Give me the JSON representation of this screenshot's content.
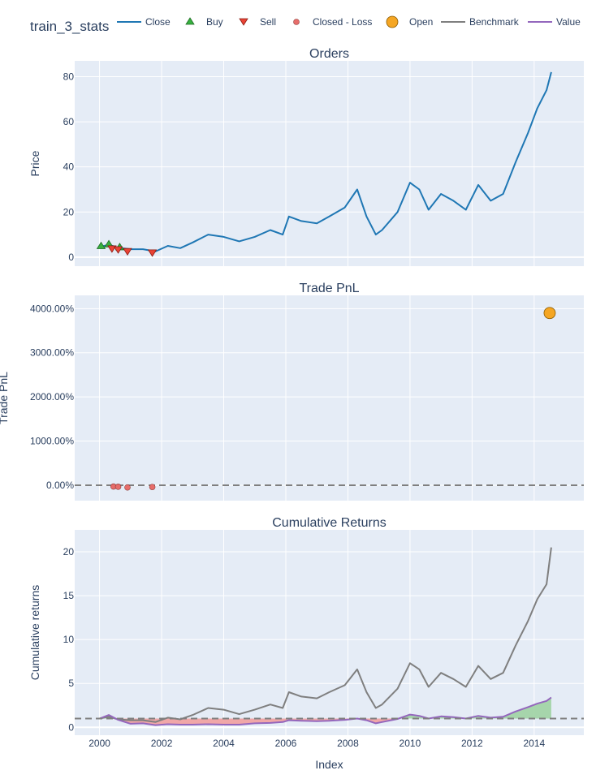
{
  "title": "train_3_stats",
  "legend": [
    {
      "label": "Close",
      "symbol": "line",
      "color": "#1f77b4"
    },
    {
      "label": "Buy",
      "symbol": "triangle-up",
      "color": "#37b13f"
    },
    {
      "label": "Sell",
      "symbol": "triangle-down",
      "color": "#ea4335"
    },
    {
      "label": "Closed - Loss",
      "symbol": "circle-small",
      "color": "#e76d6a"
    },
    {
      "label": "Open",
      "symbol": "circle-large",
      "color": "#f5a623"
    },
    {
      "label": "Benchmark",
      "symbol": "line",
      "color": "#7f7f7f"
    },
    {
      "label": "Value",
      "symbol": "line",
      "color": "#9467bd"
    }
  ],
  "colors": {
    "plot_bg": "#e5ecf6",
    "grid": "#ffffff",
    "text": "#2a3f5f",
    "close": "#1f77b4",
    "benchmark": "#7f7f7f",
    "value": "#9467bd",
    "buy": "#37b13f",
    "sell": "#ea4335",
    "loss": "#e76d6a",
    "open": "#f5a623",
    "fill_pos": "#a2d4a6",
    "fill_neg": "#f0a3a3"
  },
  "chart_data": [
    {
      "type": "line",
      "title": "Orders",
      "xlabel": "",
      "ylabel": "Price",
      "xlim": [
        1999.2,
        2015.6
      ],
      "ylim": [
        -4,
        87
      ],
      "x_ticks": [
        2000,
        2002,
        2004,
        2006,
        2008,
        2010,
        2012,
        2014
      ],
      "y_ticks": [
        0,
        20,
        40,
        60,
        80
      ],
      "series": [
        {
          "name": "Close",
          "x": [
            2000.0,
            2000.3,
            2000.6,
            2001.0,
            2001.4,
            2001.8,
            2002.2,
            2002.6,
            2003.0,
            2003.5,
            2004.0,
            2004.5,
            2005.0,
            2005.5,
            2005.9,
            2006.1,
            2006.5,
            2007.0,
            2007.4,
            2007.9,
            2008.3,
            2008.6,
            2008.9,
            2009.1,
            2009.6,
            2010.0,
            2010.3,
            2010.6,
            2011.0,
            2011.4,
            2011.8,
            2012.2,
            2012.6,
            2013.0,
            2013.4,
            2013.8,
            2014.1,
            2014.4,
            2014.55
          ],
          "y": [
            4.5,
            5.5,
            4.2,
            3.5,
            3.5,
            2.5,
            5.0,
            4.0,
            6.5,
            10.0,
            9.0,
            7.0,
            9.0,
            12.0,
            10.0,
            18.0,
            16.0,
            15.0,
            18.0,
            22.0,
            30.0,
            18.0,
            10.0,
            12.0,
            20.0,
            33.0,
            30.0,
            21.0,
            28.0,
            25.0,
            21.0,
            32.0,
            25.0,
            28.0,
            42.0,
            55.0,
            66.0,
            74.0,
            82.0
          ]
        },
        {
          "name": "Buy",
          "x": [
            2000.05,
            2000.3,
            2000.65
          ],
          "y": [
            4.8,
            5.6,
            4.3
          ]
        },
        {
          "name": "Sell",
          "x": [
            2000.4,
            2000.6,
            2000.9,
            2001.7
          ],
          "y": [
            3.6,
            3.2,
            2.4,
            1.8
          ]
        }
      ]
    },
    {
      "type": "scatter",
      "title": "Trade PnL",
      "xlabel": "",
      "ylabel": "Trade PnL",
      "xlim": [
        1999.2,
        2015.6
      ],
      "ylim": [
        -350,
        4300
      ],
      "y_ticks": [
        0,
        1000,
        2000,
        3000,
        4000
      ],
      "y_tick_labels": [
        "0.00%",
        "1000.00%",
        "2000.00%",
        "3000.00%",
        "4000.00%"
      ],
      "series": [
        {
          "name": "Closed - Loss",
          "x": [
            2000.45,
            2000.6,
            2000.9,
            2001.7
          ],
          "y": [
            -30,
            -35,
            -50,
            -40
          ]
        },
        {
          "name": "Open",
          "x": [
            2014.5
          ],
          "y": [
            3900
          ]
        }
      ],
      "reference_line": 0
    },
    {
      "type": "line",
      "title": "Cumulative Returns",
      "xlabel": "Index",
      "ylabel": "Cumulative returns",
      "xlim": [
        1999.2,
        2015.6
      ],
      "ylim": [
        -0.9,
        22.5
      ],
      "x_ticks": [
        2000,
        2002,
        2004,
        2006,
        2008,
        2010,
        2012,
        2014
      ],
      "x_tick_labels": [
        "2000",
        "2002",
        "2004",
        "2006",
        "2008",
        "2010",
        "2012",
        "2014"
      ],
      "y_ticks": [
        0,
        5,
        10,
        15,
        20
      ],
      "series": [
        {
          "name": "Benchmark",
          "x": [
            2000.0,
            2000.3,
            2000.6,
            2001.0,
            2001.4,
            2001.8,
            2002.2,
            2002.6,
            2003.0,
            2003.5,
            2004.0,
            2004.5,
            2005.0,
            2005.5,
            2005.9,
            2006.1,
            2006.5,
            2007.0,
            2007.4,
            2007.9,
            2008.3,
            2008.6,
            2008.9,
            2009.1,
            2009.6,
            2010.0,
            2010.3,
            2010.6,
            2011.0,
            2011.4,
            2011.8,
            2012.2,
            2012.6,
            2013.0,
            2013.4,
            2013.8,
            2014.1,
            2014.4,
            2014.55
          ],
          "y": [
            1.0,
            1.2,
            0.9,
            0.8,
            0.8,
            0.6,
            1.1,
            0.9,
            1.4,
            2.2,
            2.0,
            1.5,
            2.0,
            2.6,
            2.2,
            4.0,
            3.5,
            3.3,
            4.0,
            4.8,
            6.6,
            4.0,
            2.2,
            2.6,
            4.4,
            7.3,
            6.6,
            4.6,
            6.2,
            5.5,
            4.6,
            7.0,
            5.5,
            6.2,
            9.3,
            12.1,
            14.6,
            16.3,
            20.5
          ]
        },
        {
          "name": "Value",
          "x": [
            2000.0,
            2000.3,
            2000.6,
            2001.0,
            2001.4,
            2001.8,
            2002.2,
            2002.6,
            2003.0,
            2003.5,
            2004.0,
            2004.5,
            2005.0,
            2005.5,
            2005.9,
            2006.1,
            2006.5,
            2007.0,
            2007.4,
            2007.9,
            2008.3,
            2008.6,
            2008.9,
            2009.1,
            2009.6,
            2010.0,
            2010.3,
            2010.6,
            2011.0,
            2011.4,
            2011.8,
            2012.2,
            2012.6,
            2013.0,
            2013.4,
            2013.8,
            2014.1,
            2014.4,
            2014.55
          ],
          "y": [
            1.0,
            1.4,
            0.85,
            0.4,
            0.45,
            0.25,
            0.35,
            0.3,
            0.3,
            0.35,
            0.3,
            0.3,
            0.45,
            0.5,
            0.6,
            0.8,
            0.75,
            0.7,
            0.75,
            0.85,
            1.0,
            0.8,
            0.45,
            0.6,
            0.95,
            1.45,
            1.3,
            1.0,
            1.25,
            1.15,
            1.0,
            1.3,
            1.1,
            1.2,
            1.8,
            2.3,
            2.7,
            3.0,
            3.4
          ]
        }
      ],
      "reference_line": 1
    }
  ]
}
